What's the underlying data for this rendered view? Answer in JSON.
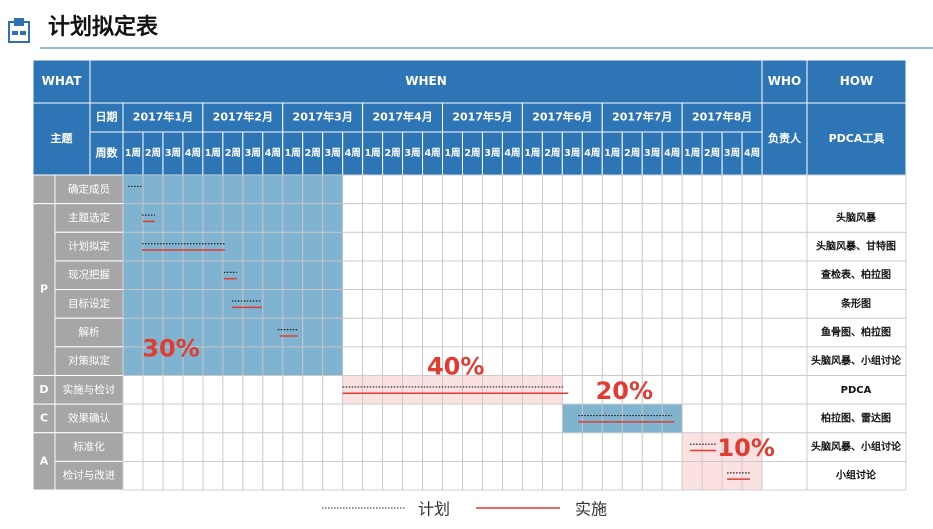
{
  "header": {
    "title": "计划拟定表"
  },
  "table": {
    "headers": {
      "what": "WHAT",
      "when": "WHEN",
      "who": "WHO",
      "how": "HOW",
      "topic": "主题",
      "date": "日期",
      "week_count": "周数",
      "owner": "负责人",
      "tool": "PDCA工具"
    },
    "months": [
      "2017年1月",
      "2017年2月",
      "2017年3月",
      "2017年4月",
      "2017年5月",
      "2017年6月",
      "2017年7月",
      "2017年8月"
    ],
    "weeks": [
      "1周",
      "2周",
      "3周",
      "4周"
    ],
    "sections": [
      {
        "label": null,
        "shade": [
          0,
          11
        ],
        "color": "#7fb3cf",
        "percent": null,
        "tasks": [
          {
            "step": "确定成员",
            "how": null,
            "plan": [
              0.25,
              0.95
            ],
            "actual": null
          }
        ]
      },
      {
        "label": "P",
        "shade": [
          0,
          11
        ],
        "color": "#7fb3cf",
        "percent": "30%",
        "tasks": [
          {
            "step": "主题选定",
            "how": "头脑风暴",
            "plan": [
              0.95,
              1.6
            ],
            "actual": [
              1,
              1.6
            ]
          },
          {
            "step": "计划拟定",
            "how": "头脑风暴、甘特图",
            "plan": [
              0.95,
              5.1
            ],
            "actual": [
              0.95,
              5.1
            ]
          },
          {
            "step": "现况把握",
            "how": "查检表、柏拉图",
            "plan": [
              5.05,
              5.7
            ],
            "actual": [
              5.05,
              5.7
            ]
          },
          {
            "step": "目标设定",
            "how": "条形图",
            "plan": [
              5.45,
              6.95
            ],
            "actual": [
              5.45,
              6.95
            ]
          },
          {
            "step": "解析",
            "how": "鱼骨图、柏拉图",
            "plan": [
              7.75,
              8.75
            ],
            "actual": [
              7.85,
              8.75
            ]
          },
          {
            "step": "对策拟定",
            "how": "头脑风暴、小组讨论",
            "plan": null,
            "actual": null
          }
        ]
      },
      {
        "label": "D",
        "shade": [
          11,
          22
        ],
        "color": "#fbe1e1",
        "percent": "40%",
        "tasks": [
          {
            "step": "实施与检讨",
            "how": "PDCA",
            "plan": [
              11,
              22.1
            ],
            "actual": [
              11,
              22.3
            ]
          }
        ]
      },
      {
        "label": "C",
        "shade": [
          22,
          28
        ],
        "color": "#7fb3cf",
        "percent": "20%",
        "tasks": [
          {
            "step": "效果确认",
            "how": "柏拉图、雷达图",
            "plan": [
              22.8,
              27.5
            ],
            "actual": [
              22.8,
              27.6
            ]
          }
        ]
      },
      {
        "label": "A",
        "shade": [
          28,
          32
        ],
        "color": "#fbe1e1",
        "percent": "10%",
        "tasks": [
          {
            "step": "标准化",
            "how": "头脑风暴、小组讨论",
            "plan": [
              28.4,
              29.7
            ],
            "actual": [
              28.4,
              29.7
            ]
          },
          {
            "step": "检讨与改进",
            "how": "小组讨论",
            "plan": [
              30.25,
              31.4
            ],
            "actual": [
              30.25,
              31.4
            ]
          }
        ]
      }
    ]
  },
  "legend": {
    "plan": "计划",
    "actual": "实施"
  }
}
